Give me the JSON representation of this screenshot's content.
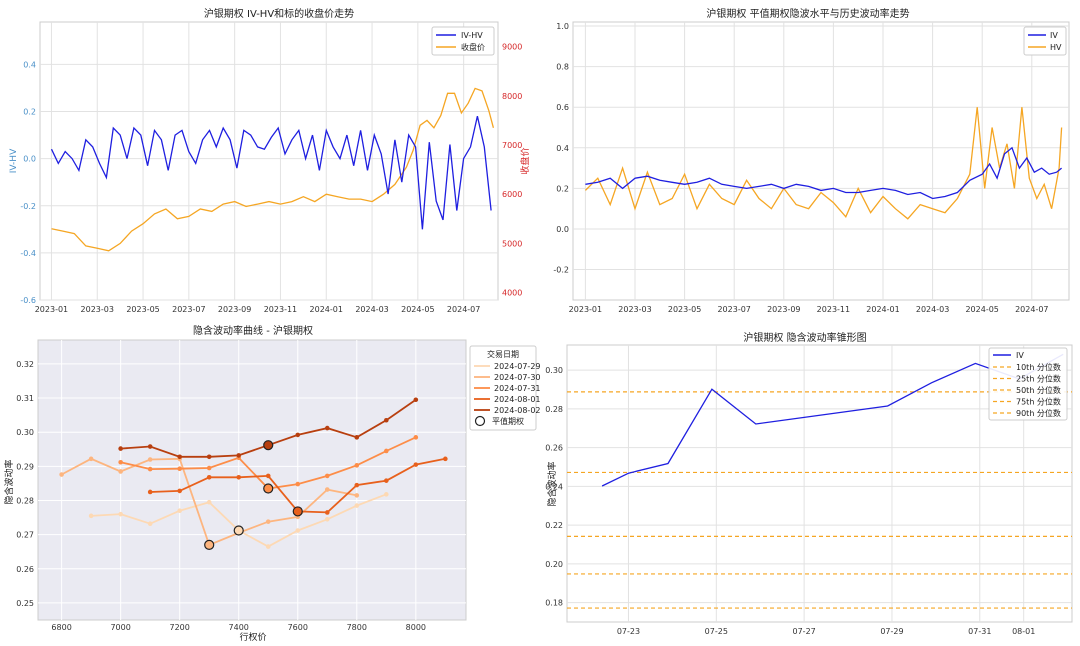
{
  "chart_data": [
    {
      "id": "p1",
      "type": "line",
      "title": "沪银期权 IV-HV和标的收盘价走势",
      "xlabel": "",
      "ylabel": "IV-HV",
      "y2label": "收盘价",
      "x_ticks": [
        "2023-01",
        "2023-03",
        "2023-05",
        "2023-07",
        "2023-09",
        "2023-11",
        "2024-01",
        "2024-03",
        "2024-05",
        "2024-07"
      ],
      "x_range_months": [
        -0.5,
        19.5
      ],
      "ylim": [
        -0.6,
        0.58
      ],
      "y_ticks": [
        "0.4",
        "0.2",
        "0.0",
        "-0.2",
        "-0.4",
        "-0.6"
      ],
      "y2lim": [
        3850,
        9500
      ],
      "y2_ticks": [
        "9000",
        "8000",
        "7000",
        "6000",
        "5000",
        "4000"
      ],
      "grid": true,
      "legend_position": "top-right",
      "colors": {
        "IV-HV": "#1f1fe0",
        "收盘价": "#f5a623",
        "left_axis": "#4a90c8",
        "right_axis": "#d62728"
      },
      "series": [
        {
          "name": "IV-HV",
          "axis": "left",
          "x": [
            0,
            0.3,
            0.6,
            0.9,
            1.2,
            1.5,
            1.8,
            2.1,
            2.4,
            2.7,
            3.0,
            3.3,
            3.6,
            3.9,
            4.2,
            4.5,
            4.8,
            5.1,
            5.4,
            5.7,
            6.0,
            6.3,
            6.6,
            6.9,
            7.2,
            7.5,
            7.8,
            8.1,
            8.4,
            8.7,
            9.0,
            9.3,
            9.6,
            9.9,
            10.2,
            10.5,
            10.8,
            11.1,
            11.4,
            11.7,
            12.0,
            12.3,
            12.6,
            12.9,
            13.2,
            13.5,
            13.8,
            14.1,
            14.4,
            14.7,
            15.0,
            15.3,
            15.6,
            15.9,
            16.2,
            16.5,
            16.8,
            17.1,
            17.4,
            17.7,
            18.0,
            18.3,
            18.6,
            18.9,
            19.2
          ],
          "y": [
            0.04,
            -0.02,
            0.03,
            0.0,
            -0.05,
            0.08,
            0.05,
            -0.02,
            -0.08,
            0.13,
            0.1,
            0.0,
            0.13,
            0.1,
            -0.03,
            0.12,
            0.08,
            -0.05,
            0.1,
            0.12,
            0.03,
            -0.02,
            0.08,
            0.12,
            0.05,
            0.13,
            0.08,
            -0.04,
            0.12,
            0.1,
            0.05,
            0.04,
            0.09,
            0.13,
            0.02,
            0.08,
            0.12,
            0.0,
            0.1,
            -0.05,
            0.12,
            0.05,
            0.0,
            0.1,
            -0.03,
            0.12,
            -0.05,
            0.1,
            0.02,
            -0.15,
            0.08,
            -0.1,
            0.1,
            0.05,
            -0.3,
            0.07,
            -0.18,
            -0.26,
            0.06,
            -0.22,
            0.0,
            0.05,
            0.18,
            0.05,
            -0.22
          ]
        },
        {
          "name": "收盘价",
          "axis": "right",
          "x": [
            0,
            0.5,
            1.0,
            1.5,
            2.0,
            2.5,
            3.0,
            3.5,
            4.0,
            4.5,
            5.0,
            5.5,
            6.0,
            6.5,
            7.0,
            7.5,
            8.0,
            8.5,
            9.0,
            9.5,
            10.0,
            10.5,
            11.0,
            11.5,
            12.0,
            12.5,
            13.0,
            13.5,
            14.0,
            14.5,
            15.0,
            15.5,
            15.8,
            16.1,
            16.4,
            16.7,
            17.0,
            17.3,
            17.6,
            17.9,
            18.2,
            18.5,
            18.8,
            19.1,
            19.3
          ],
          "y": [
            5300,
            5250,
            5200,
            4950,
            4900,
            4850,
            5000,
            5250,
            5400,
            5600,
            5700,
            5500,
            5550,
            5700,
            5650,
            5800,
            5850,
            5750,
            5800,
            5850,
            5800,
            5850,
            5950,
            5850,
            6000,
            5950,
            5900,
            5900,
            5850,
            6000,
            6200,
            6550,
            6900,
            7400,
            7500,
            7350,
            7600,
            8050,
            8050,
            7650,
            7850,
            8150,
            8100,
            7700,
            7350
          ]
        }
      ]
    },
    {
      "id": "p2",
      "type": "line",
      "title": "沪银期权 平值期权隐波水平与历史波动率走势",
      "xlabel": "",
      "ylabel": "",
      "x_ticks": [
        "2023-01",
        "2023-03",
        "2023-05",
        "2023-07",
        "2023-09",
        "2023-11",
        "2024-01",
        "2024-03",
        "2024-05",
        "2024-07"
      ],
      "x_range_months": [
        -0.5,
        19.5
      ],
      "ylim": [
        -0.35,
        1.02
      ],
      "y_ticks": [
        "1.0",
        "0.8",
        "0.6",
        "0.4",
        "0.2",
        "0.0",
        "-0.2"
      ],
      "grid": true,
      "legend_position": "top-right",
      "colors": {
        "IV": "#1f1fe0",
        "HV": "#f5a623"
      },
      "series": [
        {
          "name": "IV",
          "x": [
            0,
            0.5,
            1.0,
            1.5,
            2.0,
            2.5,
            3.0,
            3.5,
            4.0,
            4.5,
            5.0,
            5.5,
            6.0,
            6.5,
            7.0,
            7.5,
            8.0,
            8.5,
            9.0,
            9.5,
            10.0,
            10.5,
            11.0,
            11.5,
            12.0,
            12.5,
            13.0,
            13.5,
            14.0,
            14.5,
            15.0,
            15.5,
            16.0,
            16.3,
            16.6,
            16.9,
            17.2,
            17.5,
            17.8,
            18.1,
            18.4,
            18.7,
            19.0,
            19.2
          ],
          "y": [
            0.22,
            0.23,
            0.25,
            0.2,
            0.25,
            0.26,
            0.24,
            0.23,
            0.22,
            0.23,
            0.25,
            0.22,
            0.21,
            0.2,
            0.21,
            0.22,
            0.2,
            0.22,
            0.21,
            0.19,
            0.2,
            0.18,
            0.18,
            0.19,
            0.2,
            0.19,
            0.17,
            0.18,
            0.15,
            0.16,
            0.18,
            0.24,
            0.27,
            0.32,
            0.25,
            0.37,
            0.4,
            0.3,
            0.35,
            0.28,
            0.3,
            0.27,
            0.28,
            0.3
          ]
        },
        {
          "name": "HV",
          "x": [
            0,
            0.5,
            1.0,
            1.5,
            2.0,
            2.5,
            3.0,
            3.5,
            4.0,
            4.5,
            5.0,
            5.5,
            6.0,
            6.5,
            7.0,
            7.5,
            8.0,
            8.5,
            9.0,
            9.5,
            10.0,
            10.5,
            11.0,
            11.5,
            12.0,
            12.5,
            13.0,
            13.5,
            14.0,
            14.5,
            15.0,
            15.5,
            15.8,
            16.1,
            16.4,
            16.7,
            17.0,
            17.3,
            17.6,
            17.9,
            18.2,
            18.5,
            18.8,
            19.1,
            19.2
          ],
          "y": [
            0.19,
            0.25,
            0.12,
            0.3,
            0.1,
            0.28,
            0.12,
            0.15,
            0.27,
            0.1,
            0.22,
            0.15,
            0.12,
            0.24,
            0.15,
            0.1,
            0.2,
            0.12,
            0.1,
            0.18,
            0.13,
            0.06,
            0.2,
            0.08,
            0.16,
            0.1,
            0.05,
            0.12,
            0.1,
            0.08,
            0.15,
            0.27,
            0.6,
            0.2,
            0.5,
            0.3,
            0.42,
            0.2,
            0.6,
            0.25,
            0.15,
            0.22,
            0.1,
            0.3,
            0.5
          ]
        }
      ]
    },
    {
      "id": "p3",
      "type": "line",
      "title": "隐含波动率曲线 - 沪银期权",
      "xlabel": "行权价",
      "ylabel": "隐含波动率",
      "xlim": [
        6720,
        8170
      ],
      "x_ticks": [
        6800,
        7000,
        7200,
        7400,
        7600,
        7800,
        8000
      ],
      "ylim": [
        0.245,
        0.327
      ],
      "y_ticks": [
        0.25,
        0.26,
        0.27,
        0.28,
        0.29,
        0.3,
        0.31,
        0.32
      ],
      "grid": true,
      "legend_title": "交易日期",
      "legend_position": "outside-right",
      "atm_label": "平值期权",
      "series": [
        {
          "name": "2024-07-29",
          "color": "#fdd9b4",
          "x": [
            6900,
            7000,
            7100,
            7200,
            7300,
            7400,
            7500,
            7600,
            7700,
            7800,
            7900
          ],
          "y": [
            0.2755,
            0.276,
            0.2732,
            0.277,
            0.2795,
            0.2712,
            0.2665,
            0.2712,
            0.2745,
            0.2785,
            0.2818
          ]
        },
        {
          "name": "2024-07-30",
          "color": "#fdb57f",
          "x": [
            6800,
            6900,
            7000,
            7100,
            7200,
            7300,
            7400,
            7500,
            7600,
            7700,
            7800
          ],
          "y": [
            0.2876,
            0.2922,
            0.2885,
            0.292,
            0.2922,
            0.267,
            0.2705,
            0.2738,
            0.2752,
            0.2832,
            0.2815
          ]
        },
        {
          "name": "2024-07-31",
          "color": "#fd8d48",
          "x": [
            7000,
            7100,
            7200,
            7300,
            7400,
            7500,
            7600,
            7700,
            7800,
            7900,
            8000
          ],
          "y": [
            0.2912,
            0.2892,
            0.2893,
            0.2895,
            0.2925,
            0.2835,
            0.2848,
            0.2872,
            0.2903,
            0.2945,
            0.2985
          ]
        },
        {
          "name": "2024-08-01",
          "color": "#e8601c",
          "x": [
            7100,
            7200,
            7300,
            7400,
            7500,
            7600,
            7700,
            7800,
            7900,
            8000,
            8100
          ],
          "y": [
            0.2825,
            0.2828,
            0.2868,
            0.2868,
            0.2872,
            0.2768,
            0.2765,
            0.2845,
            0.2858,
            0.2905,
            0.2922
          ]
        },
        {
          "name": "2024-08-02",
          "color": "#b83f0f",
          "x": [
            7000,
            7100,
            7200,
            7300,
            7400,
            7500,
            7600,
            7700,
            7800,
            7900,
            8000
          ],
          "y": [
            0.2952,
            0.2958,
            0.2928,
            0.2928,
            0.2932,
            0.2962,
            0.2992,
            0.3012,
            0.2985,
            0.3035,
            0.3095
          ]
        }
      ],
      "atm_points": [
        {
          "date": "2024-07-29",
          "x": 7400,
          "y": 0.2712
        },
        {
          "date": "2024-07-30",
          "x": 7300,
          "y": 0.267
        },
        {
          "date": "2024-07-31",
          "x": 7500,
          "y": 0.2835
        },
        {
          "date": "2024-08-01",
          "x": 7600,
          "y": 0.2768
        },
        {
          "date": "2024-08-02",
          "x": 7500,
          "y": 0.2962
        }
      ]
    },
    {
      "id": "p4",
      "type": "line",
      "title": "沪银期权 隐含波动率锥形图",
      "xlabel": "",
      "ylabel": "隐含波动率",
      "x_ticks": [
        "07-23",
        "07-25",
        "07-27",
        "07-29",
        "07-31",
        "08-01"
      ],
      "x_tick_day_index": [
        0,
        2,
        4,
        6,
        8,
        9
      ],
      "x_range_day_index": [
        -1.4,
        10.1
      ],
      "ylim": [
        0.17,
        0.313
      ],
      "y_ticks": [
        0.18,
        0.2,
        0.22,
        0.24,
        0.26,
        0.28,
        0.3
      ],
      "grid": true,
      "legend_position": "top-right",
      "colors": {
        "IV": "#1f1fe0",
        "percentile": "#f5a623"
      },
      "series": [
        {
          "name": "IV",
          "x": [
            "07-22",
            "07-23",
            "07-24",
            "07-25",
            "07-26",
            "07-29",
            "07-30",
            "07-31",
            "08-01",
            "08-02"
          ],
          "x_index": [
            -0.6,
            0,
            0.9,
            1.9,
            2.9,
            5.9,
            6.9,
            7.9,
            8.9,
            9.9
          ],
          "y": [
            0.2402,
            0.2468,
            0.2518,
            0.2902,
            0.2722,
            0.2815,
            0.2935,
            0.3035,
            0.2955,
            0.3082
          ]
        }
      ],
      "percentiles": [
        {
          "name": "10th 分位数",
          "value": 0.1772
        },
        {
          "name": "25th 分位数",
          "value": 0.1948
        },
        {
          "name": "50th 分位数",
          "value": 0.2142
        },
        {
          "name": "75th 分位数",
          "value": 0.2472
        },
        {
          "name": "90th 分位数",
          "value": 0.2888
        }
      ]
    }
  ]
}
